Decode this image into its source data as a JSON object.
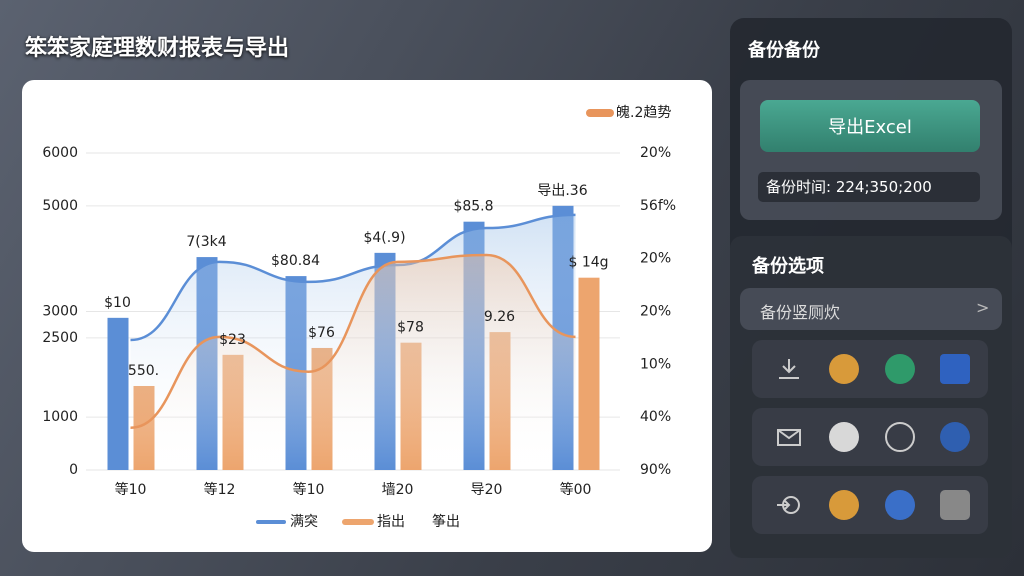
{
  "header": {
    "title": "笨笨家庭理数财报表与导出"
  },
  "chart_data": {
    "type": "bar",
    "categories": [
      "等10",
      "等12",
      "等10",
      "墙20",
      "导20",
      "等00"
    ],
    "series": [
      {
        "name": "满突",
        "kind": "bar",
        "color": "#5b8ed6",
        "legend": "bottom",
        "values": [
          2880,
          4030,
          3670,
          4110,
          4700,
          5000
        ],
        "labels": [
          "$10",
          "7(3k4",
          "$80.84",
          "$4(.9)",
          "$85.8",
          "导出.36"
        ]
      },
      {
        "name": "指出",
        "kind": "bar",
        "color": "#eda56e",
        "legend": "bottom",
        "values": [
          1590,
          2180,
          2310,
          2410,
          2610,
          3640
        ],
        "labels": [
          "550.",
          "$23",
          "$76",
          "$78",
          "9.26",
          "$ 14g"
        ]
      },
      {
        "name": "筝出",
        "kind": "line",
        "color": "#5b8ed6",
        "legend": "bottom-text",
        "values": [
          2460,
          3940,
          3560,
          3880,
          4580,
          4830
        ]
      },
      {
        "name": "魄.2趋势",
        "kind": "line",
        "color": "#e8955c",
        "legend": "top-right",
        "values": [
          800,
          2520,
          1860,
          3940,
          4070,
          2520
        ]
      }
    ],
    "ylim": [
      0,
      6000
    ],
    "yticks": [
      0,
      1000,
      2500,
      3000,
      5000,
      6000
    ],
    "grid": true,
    "right_axis_labels": [
      "20%",
      "56f%",
      "20%",
      "20%",
      "10%",
      "40%",
      "90%"
    ]
  },
  "panel": {
    "title": "备份备份",
    "export_button": "导出Excel",
    "backup_time": "备份时间:  224;350;200",
    "options_title": "备份选项",
    "options_row": "备份竖厕炊",
    "chevron": ">"
  }
}
